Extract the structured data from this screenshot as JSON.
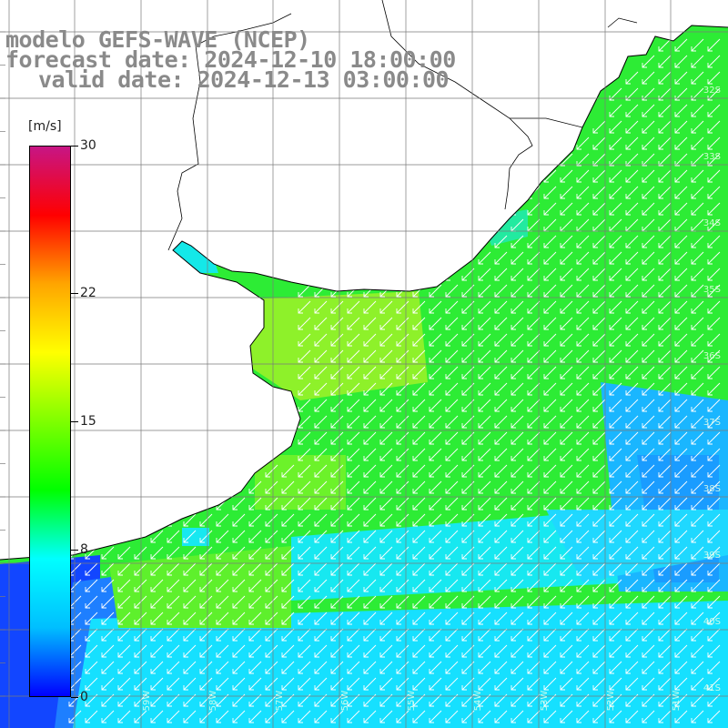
{
  "title": {
    "line1": "modelo GEFS-WAVE (NCEP)",
    "line2": "forecast date: 2024-12-10 18:00:00",
    "line3": "valid date: 2024-12-13 03:00:00"
  },
  "colorbar": {
    "unit": "[m/s]",
    "min": 0,
    "max": 30,
    "ticks": [
      {
        "label": "30",
        "value": 30
      },
      {
        "label": "22",
        "value": 22
      },
      {
        "label": "15",
        "value": 15
      },
      {
        "label": "8",
        "value": 8
      },
      {
        "label": "0",
        "value": 0
      }
    ],
    "colors": [
      "#0000ff",
      "#00bfff",
      "#00ffff",
      "#00ff00",
      "#7fff00",
      "#ffff00",
      "#ffa500",
      "#ff0000",
      "#c71585"
    ]
  },
  "map": {
    "land_color": "#ffffff",
    "coast_color": "#000000",
    "grid_color": "#7a7a7a",
    "arrow_color": "#ffffff",
    "wind_direction": "southwest",
    "lat_labels": [
      "32S",
      "33S",
      "34S",
      "35S",
      "36S",
      "37S",
      "38S",
      "39S",
      "40S",
      "41S"
    ],
    "lon_labels": [
      "59W",
      "58W",
      "57W",
      "56W",
      "55W",
      "54W",
      "53W",
      "52W",
      "51W"
    ]
  }
}
